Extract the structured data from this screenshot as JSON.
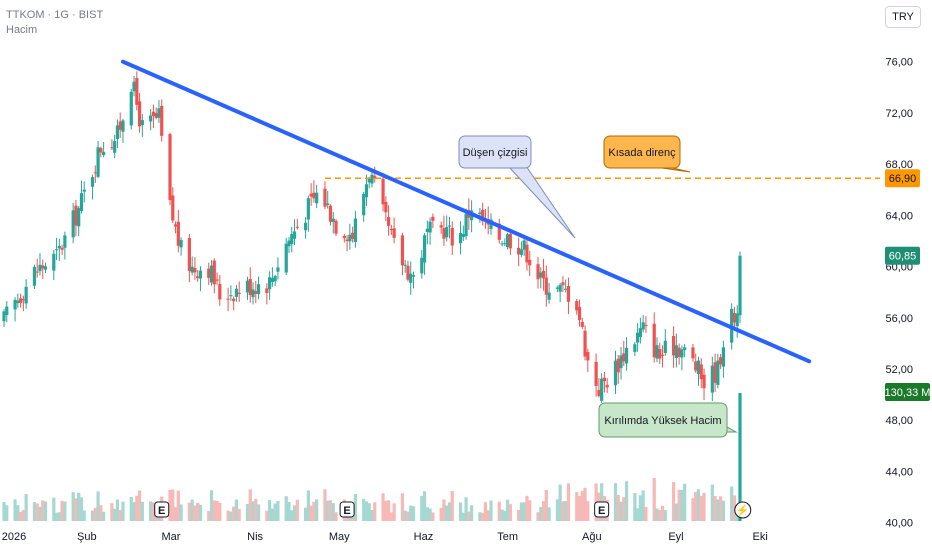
{
  "header": {
    "symbol_line": "TTKOM · 1G · BIST",
    "sub_line": "Hacim"
  },
  "currency_button": "TRY",
  "colors": {
    "up": "#26a69a",
    "down": "#ef5350",
    "trendline": "#2962ff",
    "resistance": "#ff9800",
    "vol_up": "#a6d8d2",
    "vol_down": "#f6b9b7"
  },
  "chart_data": {
    "type": "candlestick",
    "title": "",
    "x_tick_labels": [
      "2026",
      "Şub",
      "Mar",
      "Nis",
      "May",
      "Haz",
      "Tem",
      "Ağu",
      "Eyl",
      "Eki"
    ],
    "y_tick_labels": [
      "76,00",
      "72,00",
      "68,00",
      "64,00",
      "60,00",
      "56,00",
      "52,00",
      "48,00",
      "44,00",
      "40,00"
    ],
    "ylim": [
      38.8,
      78.4
    ],
    "price_labels": {
      "resistance": "66,90",
      "last_price": "60,85",
      "volume": "130,33 M"
    },
    "resistance_level": 66.9,
    "last_close": 60.85,
    "trendline": {
      "start": {
        "date": "2026-02-13",
        "value": 76.0
      },
      "end": {
        "date": "2026-10-19",
        "value": 52.6
      }
    },
    "ohlc_anchor_closes": [
      [
        "2026-01-01",
        55.8
      ],
      [
        "2026-01-12",
        59.6
      ],
      [
        "2026-01-20",
        60.8
      ],
      [
        "2026-01-28",
        64.5
      ],
      [
        "2026-02-05",
        69.4
      ],
      [
        "2026-02-11",
        70.2
      ],
      [
        "2026-02-16",
        74.5
      ],
      [
        "2026-02-20",
        70.8
      ],
      [
        "2026-02-26",
        71.6
      ],
      [
        "2026-03-02",
        64.6
      ],
      [
        "2026-03-06",
        61.2
      ],
      [
        "2026-03-10",
        59.9
      ],
      [
        "2026-03-16",
        60.0
      ],
      [
        "2026-03-20",
        57.8
      ],
      [
        "2026-03-26",
        58.2
      ],
      [
        "2026-04-01",
        58.6
      ],
      [
        "2026-04-07",
        58.8
      ],
      [
        "2026-04-13",
        61.8
      ],
      [
        "2026-04-19",
        63.9
      ],
      [
        "2026-04-25",
        66.0
      ],
      [
        "2026-05-01",
        63.4
      ],
      [
        "2026-05-07",
        62.5
      ],
      [
        "2026-05-13",
        67.5
      ],
      [
        "2026-05-18",
        64.0
      ],
      [
        "2026-05-23",
        61.0
      ],
      [
        "2026-05-29",
        59.2
      ],
      [
        "2026-06-03",
        62.6
      ],
      [
        "2026-06-09",
        63.0
      ],
      [
        "2026-06-14",
        62.0
      ],
      [
        "2026-06-19",
        64.8
      ],
      [
        "2026-06-24",
        63.2
      ],
      [
        "2026-06-29",
        62.4
      ],
      [
        "2026-07-04",
        62.2
      ],
      [
        "2026-07-09",
        61.2
      ],
      [
        "2026-07-14",
        58.9
      ],
      [
        "2026-07-19",
        58.2
      ],
      [
        "2026-07-24",
        58.0
      ],
      [
        "2026-07-27",
        57.2
      ],
      [
        "2026-07-31",
        52.6
      ],
      [
        "2026-08-04",
        50.5
      ],
      [
        "2026-08-08",
        51.5
      ],
      [
        "2026-08-14",
        53.6
      ],
      [
        "2026-08-20",
        55.2
      ],
      [
        "2026-08-26",
        53.0
      ],
      [
        "2026-09-01",
        54.0
      ],
      [
        "2026-09-07",
        52.6
      ],
      [
        "2026-09-11",
        51.0
      ],
      [
        "2026-09-16",
        52.0
      ],
      [
        "2026-09-19",
        55.5
      ],
      [
        "2026-09-23",
        56.4
      ],
      [
        "2026-09-24",
        60.85
      ]
    ],
    "volume_note": "Volume bars (relative scale) at bottom; spike on last bar = 130,33 M",
    "events": [
      {
        "date": "2026-02-27",
        "label": "E"
      },
      {
        "date": "2026-05-05",
        "label": "E"
      },
      {
        "date": "2026-08-05",
        "label": "E"
      },
      {
        "date": "2026-09-25",
        "label": "⚡"
      }
    ],
    "annotations": [
      {
        "text": "Düşen çizgisi",
        "target": "trendline"
      },
      {
        "text": "Kısada direnç",
        "target": "resistance"
      },
      {
        "text": "Kırılımda Yüksek Hacim",
        "target": "volume-spike"
      }
    ]
  }
}
